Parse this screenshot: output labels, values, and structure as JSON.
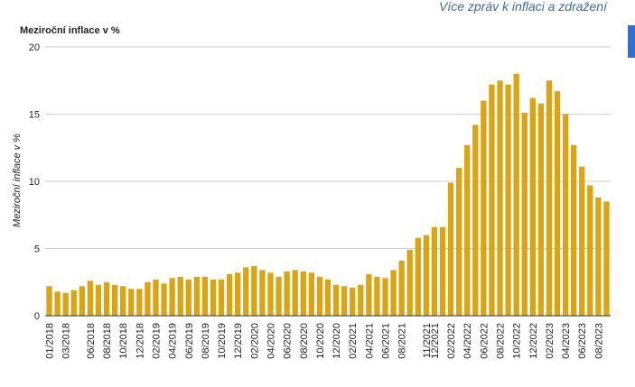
{
  "link": "Více zpráv k inflaci a zdražení",
  "chart_data": {
    "type": "bar",
    "title": "Meziroční inflace v %",
    "y_label": "Meziroční inflace v %",
    "categories": [
      "01/2018",
      null,
      "03/2018",
      null,
      null,
      "06/2018",
      null,
      "08/2018",
      null,
      "10/2018",
      null,
      "12/2018",
      null,
      "02/2019",
      null,
      "04/2019",
      null,
      "06/2019",
      null,
      "08/2019",
      null,
      "10/2019",
      null,
      "12/2019",
      null,
      "02/2020",
      null,
      "04/2020",
      null,
      "06/2020",
      null,
      "08/2020",
      null,
      "10/2020",
      null,
      "12/2020",
      null,
      "02/2021",
      null,
      "04/2021",
      null,
      "06/2021",
      null,
      "08/2021",
      null,
      null,
      "11/2021",
      "12/2021",
      null,
      "02/2022",
      null,
      "04/2022",
      null,
      "06/2022",
      null,
      "08/2022",
      null,
      "10/2022",
      null,
      "12/2022",
      null,
      "02/2023",
      null,
      "04/2023",
      null,
      "06/2023",
      null,
      "08/2023",
      null
    ],
    "values": [
      2.2,
      1.8,
      1.7,
      1.9,
      2.2,
      2.6,
      2.3,
      2.5,
      2.3,
      2.2,
      2.0,
      2.0,
      2.5,
      2.7,
      2.4,
      2.8,
      2.9,
      2.7,
      2.9,
      2.9,
      2.7,
      2.7,
      3.1,
      3.2,
      3.6,
      3.7,
      3.4,
      3.2,
      2.9,
      3.3,
      3.4,
      3.3,
      3.2,
      2.9,
      2.7,
      2.3,
      2.2,
      2.1,
      2.3,
      3.1,
      2.9,
      2.8,
      3.4,
      4.1,
      4.9,
      5.8,
      6.0,
      6.6,
      6.6,
      9.9,
      11.0,
      12.7,
      14.2,
      16.0,
      17.2,
      17.5,
      17.2,
      18.0,
      15.1,
      16.2,
      15.8,
      17.5,
      16.7,
      15.0,
      12.7,
      11.1,
      9.7,
      8.8,
      8.5
    ],
    "color": "#d9a514",
    "ylim": [
      0,
      20
    ],
    "yticks": [
      0,
      5,
      10,
      15,
      20
    ],
    "grid": true
  }
}
